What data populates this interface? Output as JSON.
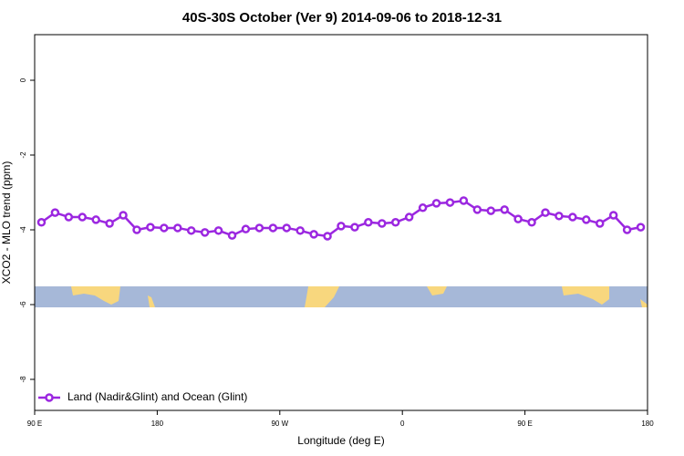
{
  "chart_data": {
    "type": "line",
    "title": "40S-30S October (Ver 9)   2014-09-06 to 2018-12-31",
    "x_label": "Longitude (deg E)",
    "y_label": "XCO2 - MLO trend (ppm)",
    "xlim": [
      90,
      540
    ],
    "xticks": [
      {
        "value": 90,
        "label": "90 E"
      },
      {
        "value": 180,
        "label": "180"
      },
      {
        "value": 270,
        "label": "90 W"
      },
      {
        "value": 360,
        "label": "0"
      },
      {
        "value": 450,
        "label": "90 E"
      },
      {
        "value": 540,
        "label": "180"
      }
    ],
    "ylim": [
      -8.83,
      1.22
    ],
    "yticks": [
      0,
      -2,
      -4,
      -6,
      -8
    ],
    "x": [
      95,
      105,
      115,
      125,
      135,
      145,
      155,
      165,
      175,
      185,
      195,
      205,
      215,
      225,
      235,
      245,
      255,
      265,
      275,
      285,
      295,
      305,
      315,
      325,
      335,
      345,
      355,
      365,
      375,
      385,
      395,
      405,
      415,
      425,
      435,
      445,
      455,
      465,
      475,
      485,
      495,
      505,
      515,
      525,
      535
    ],
    "series": [
      {
        "name": "Land (Nadir&Glint) and Ocean (Glint)",
        "color": "#9b27e0",
        "values": [
          -3.8,
          -3.54,
          -3.66,
          -3.66,
          -3.73,
          -3.83,
          -3.61,
          -4.0,
          -3.93,
          -3.95,
          -3.95,
          -4.02,
          -4.07,
          -4.02,
          -4.15,
          -3.98,
          -3.95,
          -3.95,
          -3.95,
          -4.02,
          -4.12,
          -4.17,
          -3.9,
          -3.93,
          -3.8,
          -3.83,
          -3.8,
          -3.66,
          -3.41,
          -3.29,
          -3.27,
          -3.22,
          -3.46,
          -3.49,
          -3.46,
          -3.71,
          -3.8,
          -3.54,
          -3.63,
          -3.66,
          -3.73,
          -3.83,
          -3.61,
          -4.0,
          -3.93
        ]
      }
    ],
    "legend": "lower left"
  }
}
